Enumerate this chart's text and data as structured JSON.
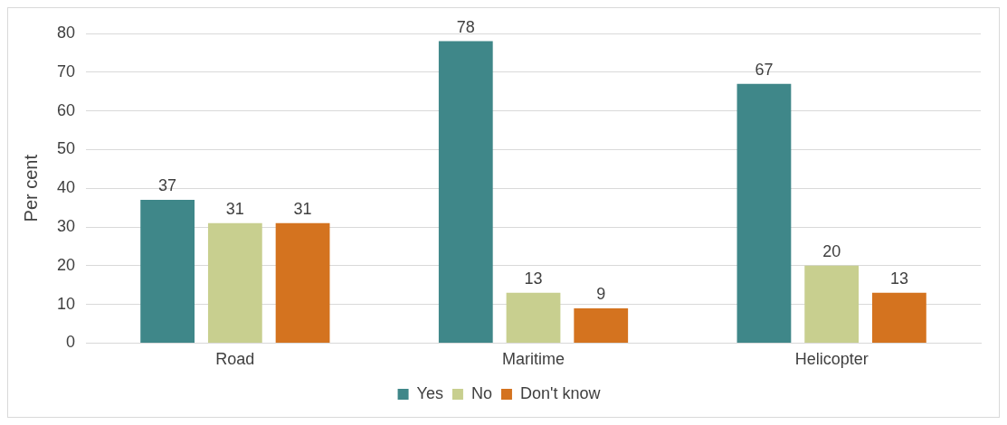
{
  "chart_data": {
    "type": "bar",
    "ylabel": "Per cent",
    "categories": [
      "Road",
      "Maritime",
      "Helicopter"
    ],
    "series": [
      {
        "name": "Yes",
        "color": "#3f8789",
        "values": [
          37,
          78,
          67
        ]
      },
      {
        "name": "No",
        "color": "#c8cf8f",
        "values": [
          31,
          13,
          20
        ]
      },
      {
        "name": "Don't know",
        "color": "#d4731f",
        "values": [
          31,
          9,
          13
        ]
      }
    ],
    "ylim": [
      0,
      80
    ],
    "yticks": [
      0,
      10,
      20,
      30,
      40,
      50,
      60,
      70,
      80
    ],
    "grid": "y",
    "legend": "bottom",
    "data_labels": true
  }
}
